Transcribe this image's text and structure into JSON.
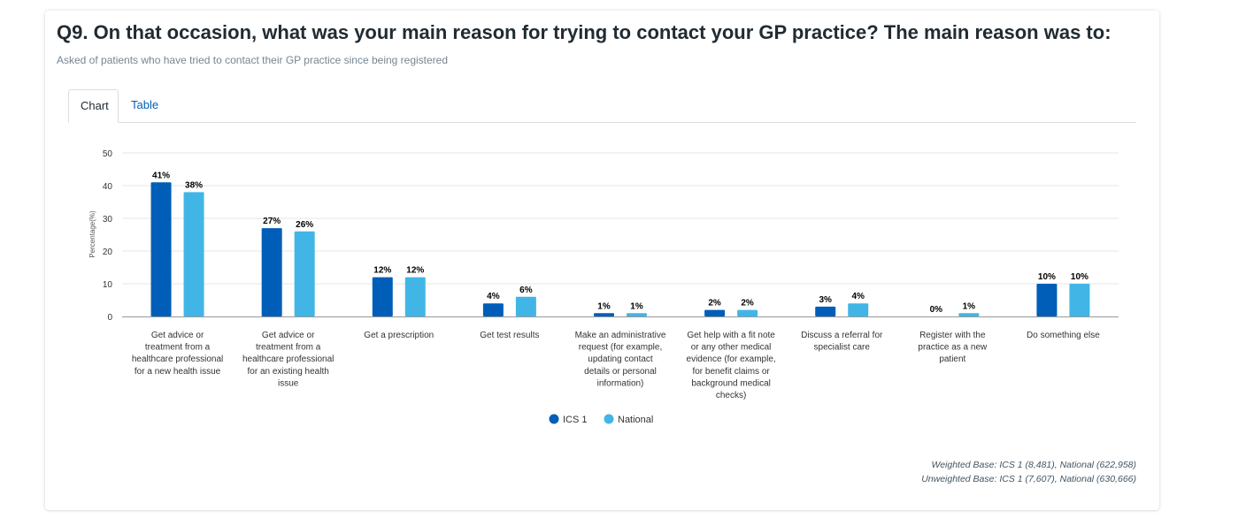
{
  "question": {
    "title": "Q9. On that occasion, what was your main reason for trying to contact your GP practice? The main reason was to:",
    "subtitle": "Asked of patients who have tried to contact their GP practice since being registered"
  },
  "tabs": [
    {
      "label": "Chart",
      "active": true
    },
    {
      "label": "Table",
      "active": false
    }
  ],
  "chart_data": {
    "type": "bar",
    "ylabel": "Percentage(%)",
    "ylim": [
      0,
      50
    ],
    "yticks": [
      0,
      10,
      20,
      30,
      40,
      50
    ],
    "grid": true,
    "legend_position": "bottom",
    "categories": [
      "Get advice or treatment from a healthcare professional for a new health issue",
      "Get advice or treatment from a healthcare professional for an existing health issue",
      "Get a prescription",
      "Get test results",
      "Make an administrative request (for example, updating contact details or personal information)",
      "Get help with a fit note or any other medical evidence (for example, for benefit claims or background medical checks)",
      "Discuss a referral for specialist care",
      "Register with the practice as a new patient",
      "Do something else"
    ],
    "category_lines": [
      [
        "Get advice or",
        "treatment from a",
        "healthcare professional",
        "for a new health issue"
      ],
      [
        "Get advice or",
        "treatment from a",
        "healthcare professional",
        "for an existing health",
        "issue"
      ],
      [
        "Get a prescription"
      ],
      [
        "Get test results"
      ],
      [
        "Make an administrative",
        "request (for example,",
        "updating contact",
        "details or personal",
        "information)"
      ],
      [
        "Get help with a fit note",
        "or any other medical",
        "evidence (for example,",
        "for benefit claims or",
        "background medical",
        "checks)"
      ],
      [
        "Discuss a referral for",
        "specialist care"
      ],
      [
        "Register with the",
        "practice as a new",
        "patient"
      ],
      [
        "Do something else"
      ]
    ],
    "series": [
      {
        "name": "ICS 1",
        "color": "#005eb8",
        "values": [
          41,
          27,
          12,
          4,
          1,
          2,
          3,
          0,
          10
        ],
        "labels": [
          "41%",
          "27%",
          "12%",
          "4%",
          "1%",
          "2%",
          "3%",
          "0%",
          "10%"
        ]
      },
      {
        "name": "National",
        "color": "#41b6e6",
        "values": [
          38,
          26,
          12,
          6,
          1,
          2,
          4,
          1,
          10
        ],
        "labels": [
          "38%",
          "26%",
          "12%",
          "6%",
          "1%",
          "2%",
          "4%",
          "1%",
          "10%"
        ]
      }
    ]
  },
  "footer": {
    "weighted_base": "Weighted Base: ICS 1 (8,481), National (622,958)",
    "unweighted_base": "Unweighted Base: ICS 1 (7,607), National (630,666)"
  }
}
